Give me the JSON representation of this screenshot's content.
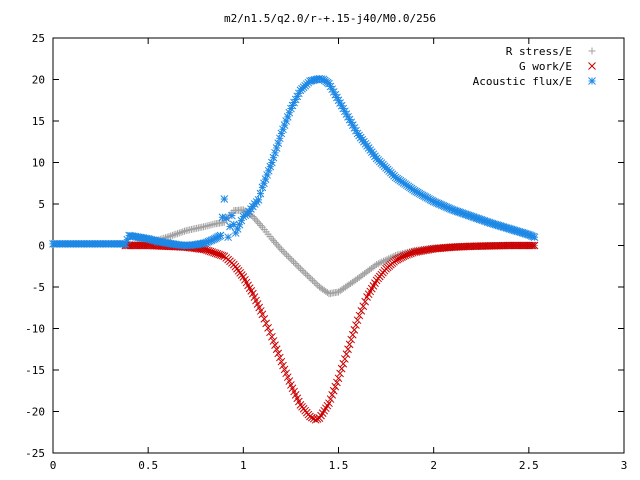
{
  "chart_data": {
    "type": "scatter",
    "title": "m2/n1.5/q2.0/r-+.15-j40/M0.0/256",
    "xlabel": "",
    "ylabel": "",
    "xlim": [
      0,
      3
    ],
    "ylim": [
      -25,
      25
    ],
    "xticks": [
      "0",
      "0.5",
      "1",
      "1.5",
      "2",
      "2.5",
      "3"
    ],
    "yticks": [
      "25",
      "20",
      "15",
      "10",
      "5",
      "0",
      "-5",
      "-10",
      "-15",
      "-20",
      "-25"
    ],
    "grid": false,
    "legend_position": "top-right",
    "series": [
      {
        "name": "R stress/E",
        "marker": "plus",
        "color": "#a0a0a0",
        "x": [
          0.4,
          0.5,
          0.6,
          0.7,
          0.8,
          0.85,
          0.9,
          0.92,
          0.95,
          1.0,
          1.05,
          1.1,
          1.15,
          1.2,
          1.3,
          1.4,
          1.45,
          1.5,
          1.6,
          1.7,
          1.8,
          1.9,
          2.0,
          2.1,
          2.2,
          2.3,
          2.4,
          2.53
        ],
        "y": [
          0.1,
          0.3,
          1.0,
          1.8,
          2.3,
          2.6,
          2.8,
          3.4,
          4.2,
          4.3,
          3.5,
          2.2,
          0.8,
          -0.5,
          -2.8,
          -5.0,
          -5.8,
          -5.6,
          -4.0,
          -2.3,
          -1.2,
          -0.6,
          -0.3,
          -0.15,
          -0.05,
          0.0,
          0.0,
          0.0
        ]
      },
      {
        "name": "G work/E",
        "marker": "cross",
        "color": "#cc0000",
        "x": [
          0.38,
          0.5,
          0.6,
          0.7,
          0.8,
          0.9,
          0.95,
          1.0,
          1.05,
          1.1,
          1.15,
          1.2,
          1.25,
          1.3,
          1.35,
          1.38,
          1.4,
          1.45,
          1.5,
          1.55,
          1.6,
          1.65,
          1.7,
          1.75,
          1.8,
          1.85,
          1.9,
          2.0,
          2.1,
          2.2,
          2.3,
          2.4,
          2.53
        ],
        "y": [
          0.0,
          0.0,
          -0.1,
          -0.2,
          -0.5,
          -1.3,
          -2.3,
          -3.8,
          -5.8,
          -8.3,
          -11.0,
          -14.0,
          -16.8,
          -19.2,
          -20.6,
          -21.0,
          -20.8,
          -19.0,
          -16.0,
          -12.5,
          -9.0,
          -6.2,
          -4.2,
          -2.8,
          -1.8,
          -1.2,
          -0.8,
          -0.4,
          -0.2,
          -0.1,
          -0.05,
          0.0,
          0.0
        ]
      },
      {
        "name": "Acoustic flux/E",
        "marker": "star",
        "color": "#1e88e5",
        "x": [
          0.0,
          0.1,
          0.2,
          0.3,
          0.38,
          0.4,
          0.45,
          0.5,
          0.55,
          0.6,
          0.65,
          0.7,
          0.75,
          0.8,
          0.85,
          0.88,
          0.9,
          0.92,
          0.94,
          0.96,
          0.98,
          1.0,
          1.02,
          1.04,
          1.06,
          1.08,
          1.1,
          1.15,
          1.2,
          1.25,
          1.3,
          1.35,
          1.4,
          1.42,
          1.45,
          1.5,
          1.55,
          1.6,
          1.7,
          1.8,
          1.9,
          2.0,
          2.1,
          2.2,
          2.3,
          2.4,
          2.5,
          2.53
        ],
        "y": [
          0.2,
          0.2,
          0.2,
          0.2,
          0.2,
          1.2,
          1.0,
          0.8,
          0.5,
          0.3,
          0.1,
          0.0,
          0.1,
          0.3,
          0.8,
          1.2,
          5.6,
          1.0,
          3.6,
          1.5,
          2.5,
          3.5,
          3.8,
          4.4,
          5.0,
          5.5,
          7.0,
          10.0,
          13.5,
          16.5,
          18.7,
          19.8,
          20.1,
          20.0,
          19.5,
          17.5,
          15.5,
          13.5,
          10.5,
          8.2,
          6.6,
          5.3,
          4.3,
          3.5,
          2.7,
          2.0,
          1.3,
          1.0
        ]
      }
    ]
  }
}
